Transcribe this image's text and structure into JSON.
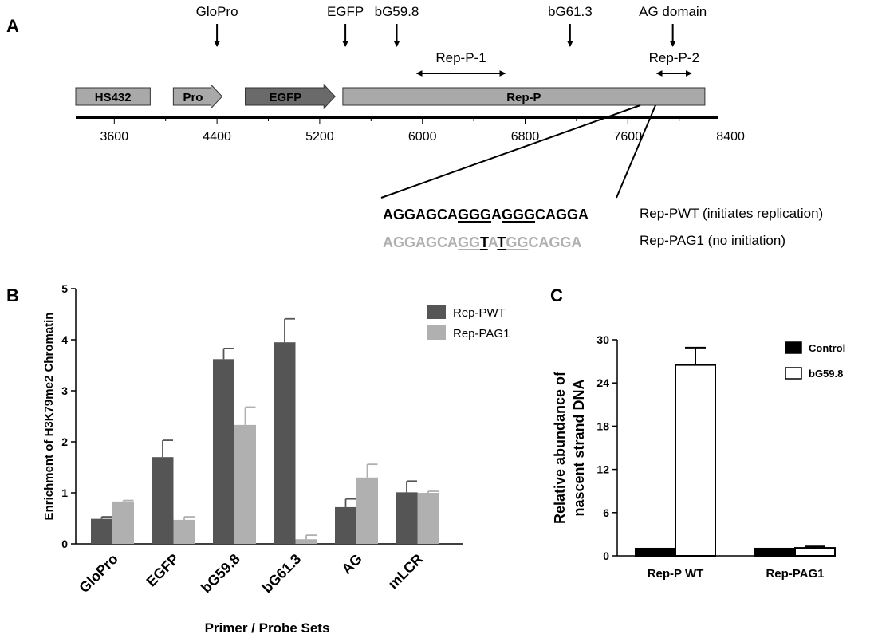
{
  "panelA": {
    "label": "A",
    "arrows": [
      {
        "label": "GloPro",
        "pos": 4400
      },
      {
        "label": "EGFP",
        "pos": 5400
      },
      {
        "label": "bG59.8",
        "pos": 5800
      },
      {
        "label": "bG61.3",
        "pos": 7150
      },
      {
        "label": "AG domain",
        "pos": 7950
      }
    ],
    "boxes": [
      {
        "label": "HS432",
        "start": 3300,
        "end": 3880,
        "shape": "box",
        "color": "#a9a9a9"
      },
      {
        "label": "Pro",
        "start": 4060,
        "end": 4440,
        "shape": "arrow",
        "color": "#a9a9a9"
      },
      {
        "label": "EGFP",
        "start": 4620,
        "end": 5320,
        "shape": "arrow",
        "color": "#6a6a6a"
      },
      {
        "label": "Rep-P",
        "start": 5380,
        "end": 8200,
        "shape": "box",
        "color": "#a9a9a9"
      }
    ],
    "amplicons": [
      {
        "label": "Rep-P-1",
        "start": 5950,
        "end": 6650
      },
      {
        "label": "Rep-P-2",
        "start": 7820,
        "end": 8100
      }
    ],
    "axis": {
      "min": 3300,
      "max": 8300,
      "ticks": [
        3600,
        4400,
        5200,
        6000,
        6800,
        7600,
        8400
      ]
    },
    "sequences": {
      "wt": {
        "segments": [
          {
            "t": "AGGAGCA",
            "u": false
          },
          {
            "t": "GGG",
            "u": true
          },
          {
            "t": "A",
            "u": false
          },
          {
            "t": "GGG",
            "u": true
          },
          {
            "t": "CAGGA",
            "u": false
          }
        ],
        "color": "#000000",
        "label": "Rep-PWT  (initiates replication)"
      },
      "ag1": {
        "segments": [
          {
            "t": "AGGAGCA",
            "u": false,
            "c": "#b0b0b0"
          },
          {
            "t": "GG",
            "u": true,
            "c": "#b0b0b0"
          },
          {
            "t": "T",
            "u": true,
            "c": "#000000"
          },
          {
            "t": "A",
            "u": false,
            "c": "#b0b0b0"
          },
          {
            "t": "T",
            "u": true,
            "c": "#000000"
          },
          {
            "t": "GG",
            "u": true,
            "c": "#b0b0b0"
          },
          {
            "t": "CAGGA",
            "u": false,
            "c": "#b0b0b0"
          }
        ],
        "label": "Rep-PAG1 (no initiation)"
      }
    }
  },
  "panelB": {
    "label": "B"
  },
  "panelC": {
    "label": "C"
  },
  "chart_data": [
    {
      "type": "bar",
      "categories": [
        "GloPro",
        "EGFP",
        "bG59.8",
        "bG61.3",
        "AG",
        "mLCR"
      ],
      "series": [
        {
          "name": "Rep-PWT",
          "values": [
            0.49,
            1.7,
            3.62,
            3.95,
            0.72,
            1.01
          ],
          "errors": [
            0.04,
            0.33,
            0.21,
            0.46,
            0.16,
            0.22
          ],
          "color": "#555555"
        },
        {
          "name": "Rep-PAG1",
          "values": [
            0.83,
            0.47,
            2.33,
            0.09,
            1.3,
            1.0
          ],
          "errors": [
            0.02,
            0.06,
            0.35,
            0.08,
            0.26,
            0.03
          ],
          "color": "#b0b0b0"
        }
      ],
      "xlabel": "Primer / Probe Sets",
      "ylabel": "Enrichment of H3K79me2 Chromatin",
      "ylim": [
        0,
        5
      ],
      "yticks": [
        0,
        1,
        2,
        3,
        4,
        5
      ],
      "legend": "top-right",
      "grid": false
    },
    {
      "type": "bar",
      "categories": [
        "Rep-P WT",
        "Rep-PAG1"
      ],
      "series": [
        {
          "name": "Control",
          "values": [
            1.0,
            1.0
          ],
          "errors": [
            0,
            0
          ],
          "color": "#000000"
        },
        {
          "name": "bG59.8",
          "values": [
            26.5,
            1.1
          ],
          "errors": [
            2.4,
            0.2
          ],
          "color": "#ffffff"
        }
      ],
      "xlabel": "",
      "ylabel": "Relative abundance of nascent strand DNA",
      "ylabel_lines": [
        "Relative abundance of",
        "nascent strand DNA"
      ],
      "ylim": [
        0,
        30
      ],
      "yticks": [
        0,
        6,
        12,
        18,
        24,
        30
      ],
      "legend": "top-right",
      "grid": false
    }
  ]
}
